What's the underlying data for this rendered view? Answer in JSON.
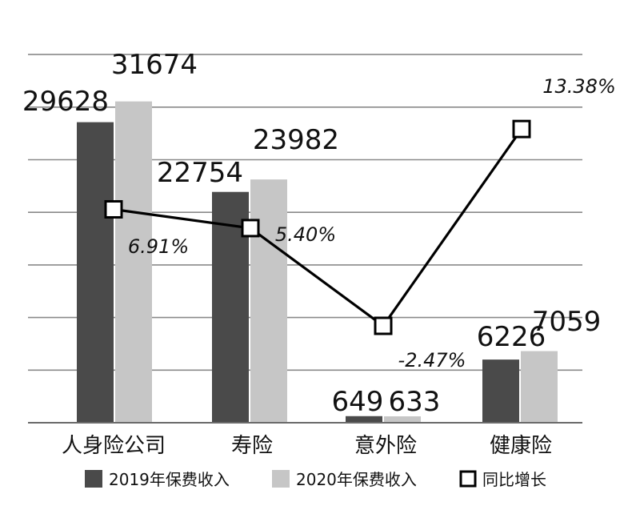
{
  "chart_data": {
    "type": "bar",
    "categories": [
      "人身险公司",
      "寿险",
      "意外险",
      "健康险"
    ],
    "series": [
      {
        "name": "2019年保费收入",
        "values": [
          29628,
          22754,
          649,
          6226
        ],
        "color": "#4a4a4a"
      },
      {
        "name": "2020年保费收入",
        "values": [
          31674,
          23982,
          633,
          7059
        ],
        "color": "#c6c6c6"
      }
    ],
    "line_series": {
      "name": "同比增长",
      "values": [
        6.91,
        5.4,
        -2.47,
        13.38
      ],
      "labels": [
        "6.91%",
        "5.40%",
        "-2.47%",
        "13.38%"
      ],
      "color": "#000000"
    },
    "ylim": [
      0,
      35000
    ],
    "legend": "bottom",
    "grid": true
  }
}
